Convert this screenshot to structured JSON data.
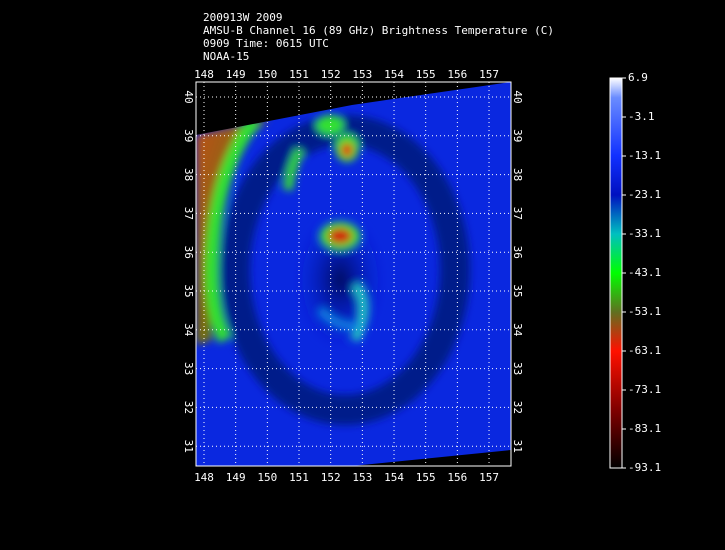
{
  "header": {
    "lines": [
      "200913W 2009",
      "AMSU-B Channel 16 (89 GHz) Brightness Temperature (C)",
      "0909 Time: 0615 UTC",
      "NOAA-15"
    ]
  },
  "map": {
    "lon_ticks": [
      148,
      149,
      150,
      151,
      152,
      153,
      154,
      155,
      156,
      157
    ],
    "lat_ticks": [
      31,
      32,
      33,
      34,
      35,
      36,
      37,
      38,
      39,
      40
    ]
  },
  "colorbar": {
    "ticks": [
      6.9,
      -3.1,
      -13.1,
      -23.1,
      -33.1,
      -43.1,
      -53.1,
      -63.1,
      -73.1,
      -83.1,
      -93.1
    ]
  }
}
